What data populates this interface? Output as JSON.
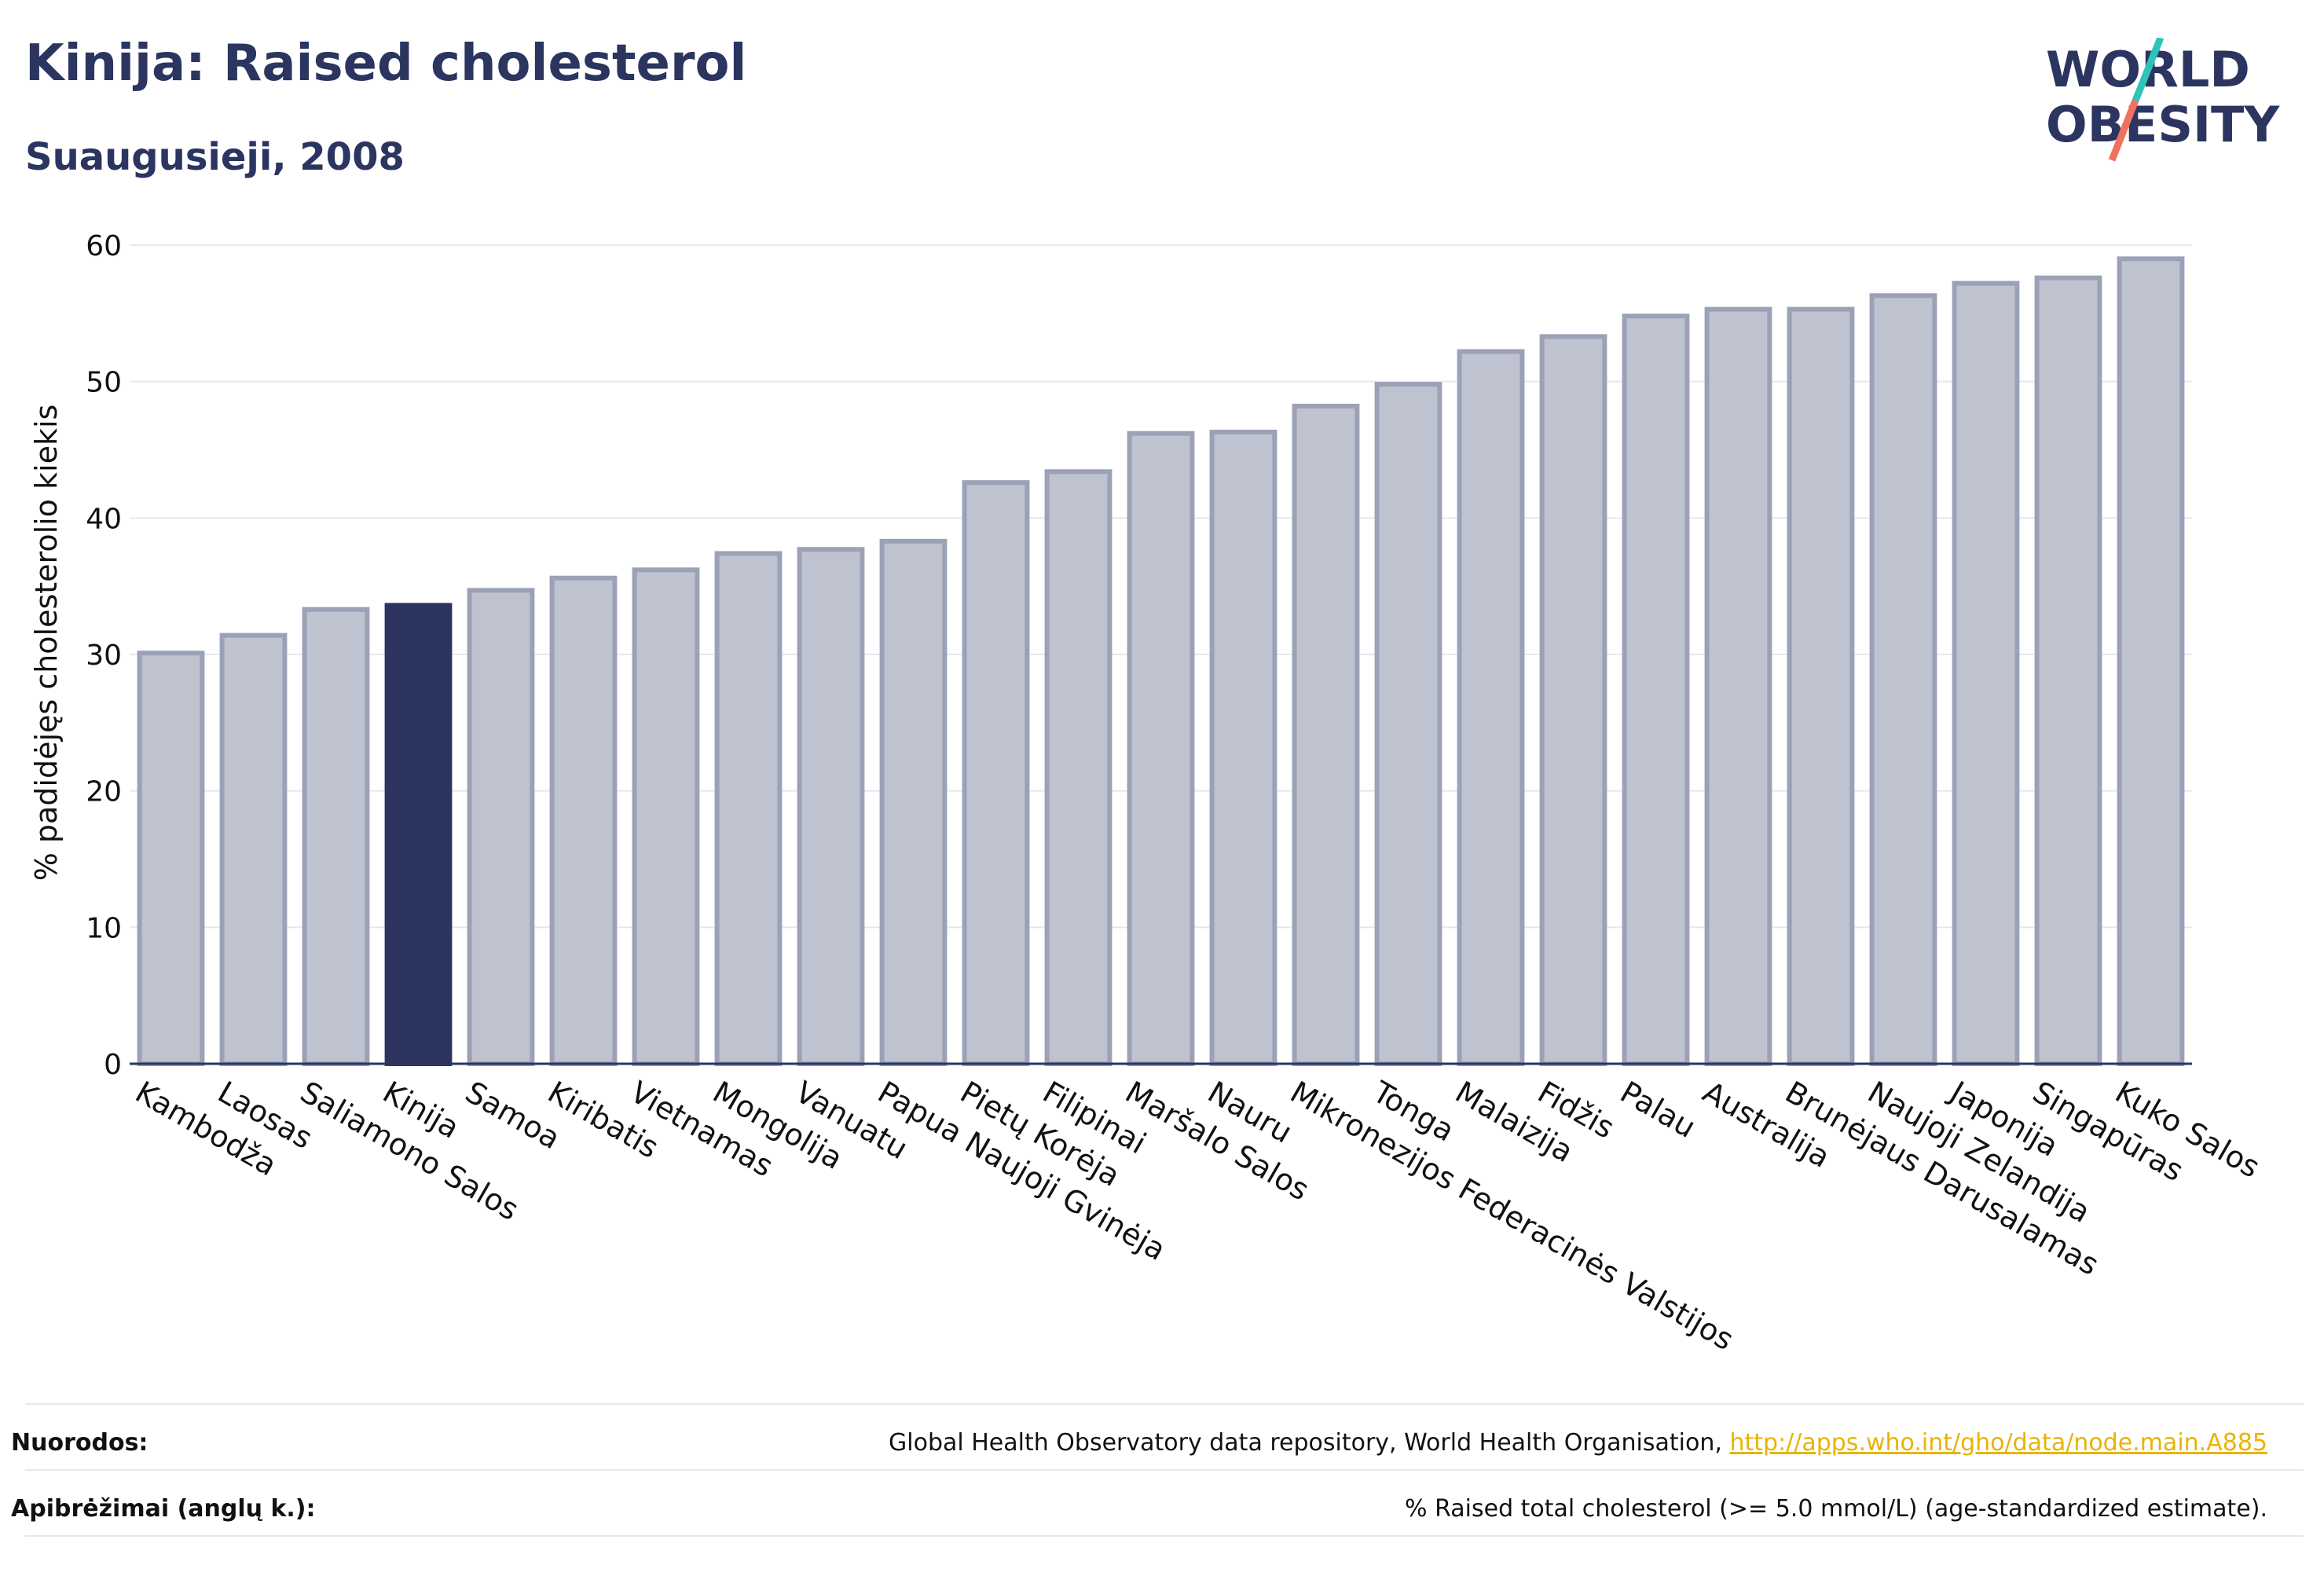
{
  "header": {
    "title": "Kinija: Raised cholesterol",
    "subtitle": "Suaugusieji, 2008"
  },
  "logo": {
    "line1": "WORLD",
    "line2": "OBESITY"
  },
  "colors": {
    "bar_fill": "#bfc3cf",
    "bar_stroke": "#9ba1b6",
    "highlight": "#2b3560",
    "grid": "#e6e8ee",
    "text": "#111111",
    "title": "#2b3560",
    "link": "#e8b400",
    "logo_teal": "#2ec4b6",
    "logo_coral": "#f0715f"
  },
  "chart_data": {
    "type": "bar",
    "ylabel": "% padidėjęs cholesterolio kiekis",
    "ylim": [
      0,
      60
    ],
    "yticks": [
      0,
      10,
      20,
      30,
      40,
      50,
      60
    ],
    "grid": true,
    "highlight": "Kinija",
    "categories": [
      "Kambodža",
      "Laosas",
      "Saliamono Salos",
      "Kinija",
      "Samoa",
      "Kiribatis",
      "Vietnamas",
      "Mongolija",
      "Vanuatu",
      "Papua Naujoji Gvinėja",
      "Pietų Korėja",
      "Filipinai",
      "Maršalo Salos",
      "Nauru",
      "Mikronezijos Federacinės Valstijos",
      "Tonga",
      "Malaizija",
      "Fidžis",
      "Palau",
      "Australija",
      "Brunėjaus Darusalamas",
      "Naujoji Zelandija",
      "Japonija",
      "Singapūras",
      "Kuko Salos"
    ],
    "values": [
      30.1,
      31.4,
      33.3,
      33.6,
      34.7,
      35.6,
      36.2,
      37.4,
      37.7,
      38.3,
      42.6,
      43.4,
      46.2,
      46.3,
      48.2,
      49.8,
      52.2,
      53.3,
      54.8,
      55.3,
      55.3,
      56.3,
      57.2,
      57.6,
      59.0
    ]
  },
  "footer": {
    "sources_label": "Nuorodos:",
    "sources_text": "Global Health Observatory data repository, World Health Organisation, ",
    "sources_link": "http://apps.who.int/gho/data/node.main.A885",
    "definitions_label": "Apibrėžimai (anglų k.):",
    "definitions_text": "% Raised total cholesterol (>= 5.0 mmol/L) (age-standardized estimate)."
  }
}
